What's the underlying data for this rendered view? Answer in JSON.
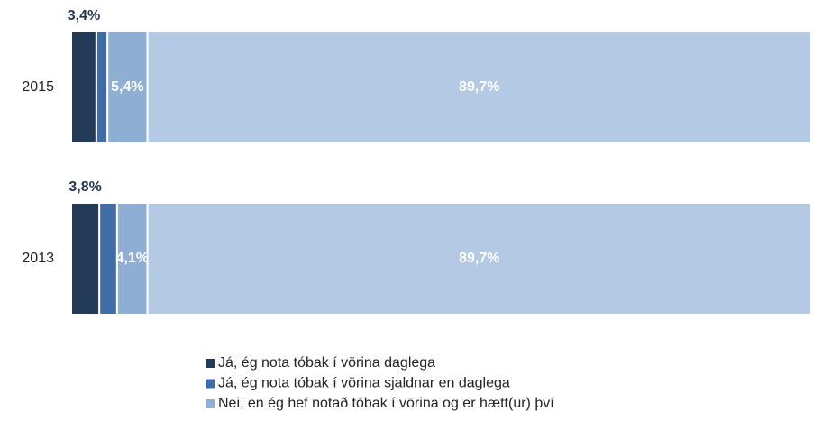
{
  "chart_data": {
    "type": "stacked-bar-horizontal",
    "categories": [
      "2015",
      "2013"
    ],
    "xlim": [
      0,
      100
    ],
    "series": [
      {
        "name": "Já, ég nota tóbak í vörina daglega",
        "color": "#243b57",
        "values": [
          3.4,
          3.8
        ],
        "value_labels": [
          "3,4%",
          "3,8%"
        ]
      },
      {
        "name": "Já, ég nota tóbak í vörina sjaldnar en daglega",
        "color": "#3f6da8",
        "values": [
          1.5,
          2.4
        ]
      },
      {
        "name": "Nei, en ég hef notað tóbak í vörina og er hætt(ur) því",
        "color": "#8eaed4",
        "values": [
          5.4,
          4.1
        ],
        "value_labels": [
          "5,4%",
          "4,1%"
        ]
      },
      {
        "color": "#b4c9e4",
        "values": [
          89.7,
          89.7
        ],
        "value_labels": [
          "89,7%",
          "89,7%"
        ]
      }
    ]
  }
}
